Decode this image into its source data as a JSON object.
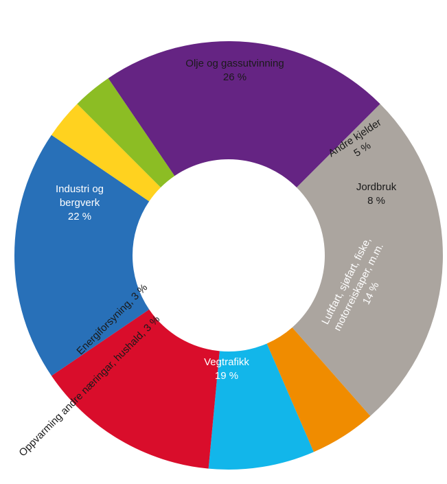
{
  "chart_data": {
    "type": "pie",
    "variant": "donut",
    "start_angle_deg": -45,
    "direction": "clockwise",
    "slices": [
      {
        "name": "Olje og gassutvinning",
        "value": 26,
        "value_label": "26 %",
        "color": "#aba59f",
        "text_color": "#1a1a1a"
      },
      {
        "name": "Andre kjelder",
        "value": 5,
        "value_label": "5 %",
        "color": "#f08c00",
        "text_color": "#1a1a1a"
      },
      {
        "name": "Jordbruk",
        "value": 8,
        "value_label": "8 %",
        "color": "#12b6ea",
        "text_color": "#1a1a1a"
      },
      {
        "name": "Luftfart, sjøfart, fiske, motorreiskaper, m.m.",
        "value": 14,
        "value_label": "14 %",
        "color": "#d90d2b",
        "text_color": "#ffffff"
      },
      {
        "name": "Vegtrafikk",
        "value": 19,
        "value_label": "19 %",
        "color": "#2870b8",
        "text_color": "#ffffff"
      },
      {
        "name": "Oppvarming andre næringar, hushald, 3 %",
        "value": 3,
        "value_label": "",
        "color": "#ffd21f",
        "text_color": "#1a1a1a"
      },
      {
        "name": "Energiforsyning, 3 %",
        "value": 3,
        "value_label": "",
        "color": "#8cbd24",
        "text_color": "#1a1a1a"
      },
      {
        "name": "Industri og bergverk",
        "value": 22,
        "value_label": "22 %",
        "color": "#652483",
        "text_color": "#ffffff"
      }
    ]
  }
}
